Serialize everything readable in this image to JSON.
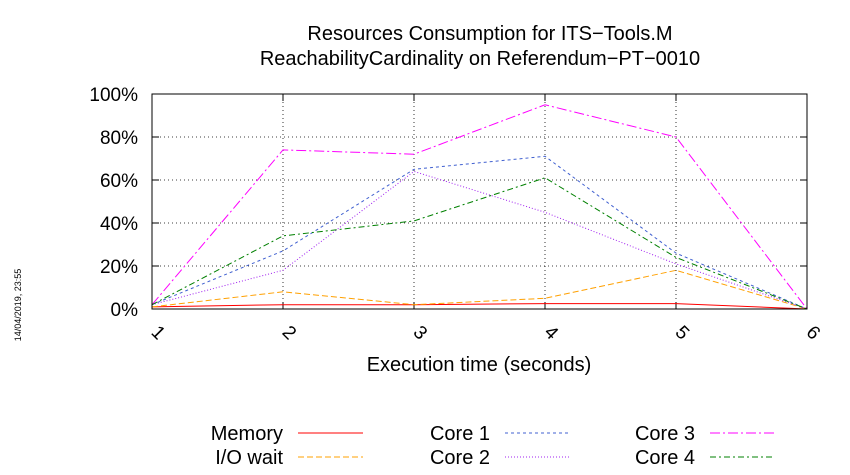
{
  "timestamp": "14/04/2019, 23:55",
  "chart_data": {
    "type": "line",
    "title": [
      "Resources Consumption for ITS−Tools.M",
      "ReachabilityCardinality on Referendum−PT−0010"
    ],
    "xlabel": "Execution time (seconds)",
    "ylabel": "",
    "x": [
      1,
      2,
      3,
      4,
      5,
      6
    ],
    "xlim": [
      1,
      6
    ],
    "ylim": [
      0,
      100
    ],
    "y_ticks": [
      "0%",
      "20%",
      "40%",
      "60%",
      "80%",
      "100%"
    ],
    "x_ticks": [
      "1",
      "2",
      "3",
      "4",
      "5",
      "6"
    ],
    "grid": true,
    "legend_position": "bottom",
    "series": [
      {
        "name": "Memory",
        "color": "#ff0000",
        "dash": "",
        "values": [
          1,
          2,
          2,
          2.5,
          2.5,
          0
        ]
      },
      {
        "name": "I/O wait",
        "color": "#ffa000",
        "dash": "6,3",
        "values": [
          1,
          8,
          2,
          5,
          18,
          0
        ]
      },
      {
        "name": "Core 1",
        "color": "#4060d0",
        "dash": "3,3",
        "values": [
          2,
          27,
          65,
          71,
          26,
          0
        ]
      },
      {
        "name": "Core 2",
        "color": "#a020f0",
        "dash": "1,2",
        "values": [
          2,
          18,
          64,
          45,
          21,
          0
        ]
      },
      {
        "name": "Core 3",
        "color": "#ff00ff",
        "dash": "10,3,2,3",
        "values": [
          2,
          74,
          72,
          95,
          80,
          0
        ]
      },
      {
        "name": "Core 4",
        "color": "#008000",
        "dash": "6,3,2,3",
        "values": [
          2,
          34,
          41,
          61,
          24,
          0
        ]
      }
    ]
  }
}
